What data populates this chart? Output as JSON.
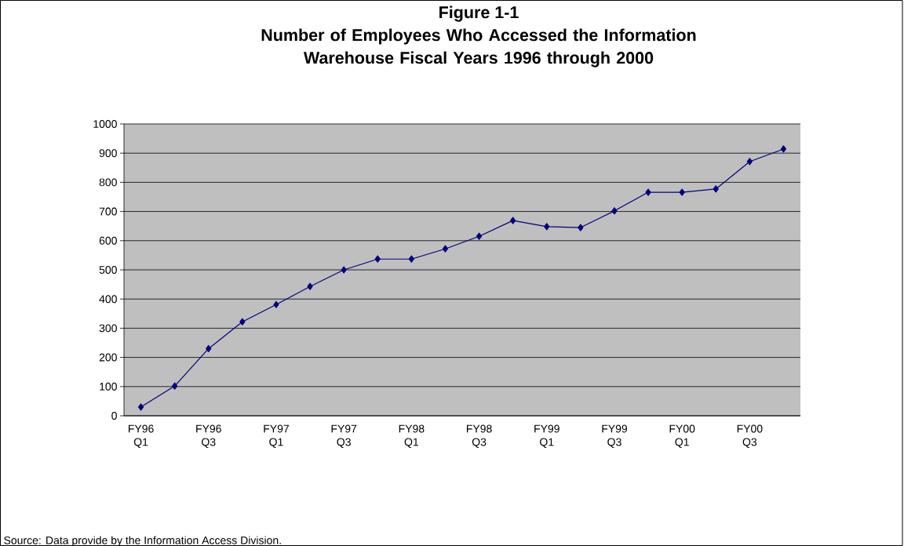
{
  "chart_data": {
    "type": "line",
    "title": "Figure 1-1",
    "subtitle": "Number of Employees Who Accessed the Information Warehouse Fiscal Years 1996 through 2000",
    "categories": [
      "FY96 Q1",
      null,
      "FY96 Q3",
      null,
      "FY97 Q1",
      null,
      "FY97 Q3",
      null,
      "FY98 Q1",
      null,
      "FY98 Q3",
      null,
      "FY99 Q1",
      null,
      "FY99 Q3",
      null,
      "FY00 Q1",
      null,
      "FY00 Q3",
      null
    ],
    "series": [
      {
        "color": "#000080",
        "values": [
          30,
          102,
          230,
          322,
          381,
          443,
          500,
          537,
          537,
          572,
          615,
          669,
          648,
          645,
          702,
          766,
          766,
          777,
          871,
          914
        ]
      }
    ],
    "ylim": [
      0,
      1000
    ],
    "yticks": [
      0,
      100,
      200,
      300,
      400,
      500,
      600,
      700,
      800,
      900,
      1000
    ],
    "grid": "y",
    "marker": "diamond",
    "line_style": "solid",
    "annotations": [
      "Source:  Data provide by the Information Access Division."
    ]
  }
}
